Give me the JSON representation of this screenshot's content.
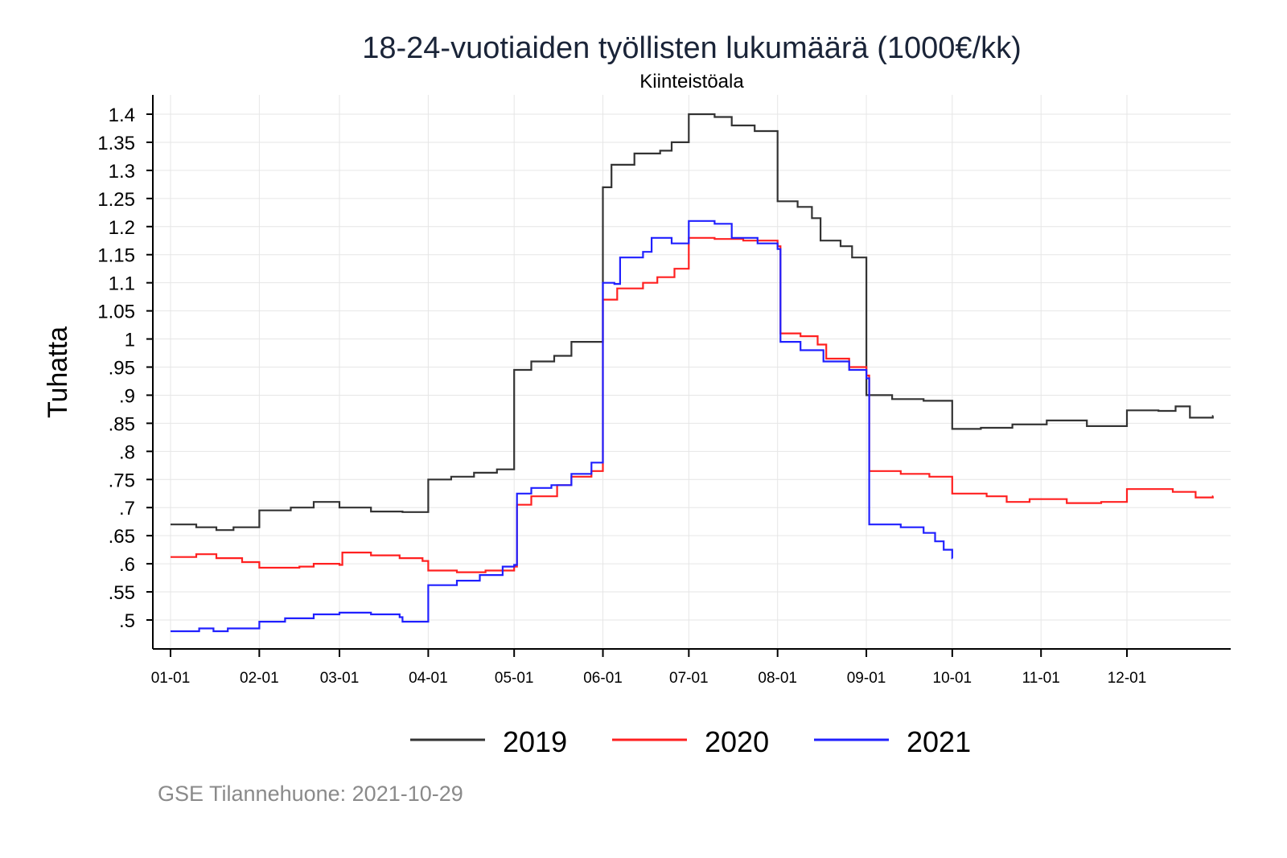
{
  "chart_data": {
    "type": "line",
    "title": "18-24-vuotiaiden työllisten lukumäärä (1000€/kk)",
    "subtitle": "Kiinteistöala",
    "ylabel": "Tuhatta",
    "xlabel": "",
    "ylim": [
      0.45,
      1.44
    ],
    "xlim_days": [
      -6,
      370
    ],
    "grid": true,
    "legend_position": "bottom",
    "y_ticks": [
      {
        "value": 1.4,
        "label": "1.4"
      },
      {
        "value": 1.35,
        "label": "1.35"
      },
      {
        "value": 1.3,
        "label": "1.3"
      },
      {
        "value": 1.25,
        "label": "1.25"
      },
      {
        "value": 1.2,
        "label": "1.2"
      },
      {
        "value": 1.15,
        "label": "1.15"
      },
      {
        "value": 1.1,
        "label": "1.1"
      },
      {
        "value": 1.05,
        "label": "1.05"
      },
      {
        "value": 1.0,
        "label": "1"
      },
      {
        "value": 0.95,
        "label": ".95"
      },
      {
        "value": 0.9,
        "label": ".9"
      },
      {
        "value": 0.85,
        "label": ".85"
      },
      {
        "value": 0.8,
        "label": ".8"
      },
      {
        "value": 0.75,
        "label": ".75"
      },
      {
        "value": 0.7,
        "label": ".7"
      },
      {
        "value": 0.65,
        "label": ".65"
      },
      {
        "value": 0.6,
        "label": ".6"
      },
      {
        "value": 0.55,
        "label": ".55"
      },
      {
        "value": 0.5,
        "label": ".5"
      }
    ],
    "x_ticks": [
      {
        "day": 0,
        "label": "01-01"
      },
      {
        "day": 31,
        "label": "02-01"
      },
      {
        "day": 59,
        "label": "03-01"
      },
      {
        "day": 90,
        "label": "04-01"
      },
      {
        "day": 120,
        "label": "05-01"
      },
      {
        "day": 151,
        "label": "06-01"
      },
      {
        "day": 181,
        "label": "07-01"
      },
      {
        "day": 212,
        "label": "08-01"
      },
      {
        "day": 243,
        "label": "09-01"
      },
      {
        "day": 273,
        "label": "10-01"
      },
      {
        "day": 304,
        "label": "11-01"
      },
      {
        "day": 334,
        "label": "12-01"
      }
    ],
    "series": [
      {
        "name": "2019",
        "color": "#333333",
        "points": [
          [
            0,
            0.67
          ],
          [
            5,
            0.67
          ],
          [
            9,
            0.665
          ],
          [
            16,
            0.66
          ],
          [
            22,
            0.665
          ],
          [
            31,
            0.695
          ],
          [
            42,
            0.7
          ],
          [
            50,
            0.71
          ],
          [
            59,
            0.7
          ],
          [
            70,
            0.693
          ],
          [
            81,
            0.692
          ],
          [
            90,
            0.75
          ],
          [
            98,
            0.755
          ],
          [
            106,
            0.762
          ],
          [
            114,
            0.768
          ],
          [
            120,
            0.945
          ],
          [
            126,
            0.96
          ],
          [
            134,
            0.97
          ],
          [
            140,
            0.995
          ],
          [
            147,
            0.995
          ],
          [
            151,
            1.27
          ],
          [
            154,
            1.31
          ],
          [
            162,
            1.33
          ],
          [
            171,
            1.335
          ],
          [
            175,
            1.35
          ],
          [
            181,
            1.4
          ],
          [
            190,
            1.395
          ],
          [
            196,
            1.38
          ],
          [
            204,
            1.37
          ],
          [
            212,
            1.245
          ],
          [
            219,
            1.235
          ],
          [
            224,
            1.215
          ],
          [
            227,
            1.175
          ],
          [
            234,
            1.165
          ],
          [
            238,
            1.145
          ],
          [
            243,
            0.9
          ],
          [
            252,
            0.893
          ],
          [
            263,
            0.89
          ],
          [
            273,
            0.84
          ],
          [
            283,
            0.842
          ],
          [
            294,
            0.848
          ],
          [
            306,
            0.855
          ],
          [
            317,
            0.855
          ],
          [
            320,
            0.845
          ],
          [
            334,
            0.873
          ],
          [
            345,
            0.872
          ],
          [
            351,
            0.88
          ],
          [
            356,
            0.86
          ],
          [
            364,
            0.863
          ]
        ]
      },
      {
        "name": "2020",
        "color": "#ff2020",
        "points": [
          [
            0,
            0.612
          ],
          [
            9,
            0.617
          ],
          [
            16,
            0.61
          ],
          [
            25,
            0.603
          ],
          [
            31,
            0.593
          ],
          [
            45,
            0.595
          ],
          [
            50,
            0.6
          ],
          [
            59,
            0.598
          ],
          [
            60,
            0.62
          ],
          [
            70,
            0.615
          ],
          [
            80,
            0.61
          ],
          [
            88,
            0.605
          ],
          [
            90,
            0.588
          ],
          [
            100,
            0.585
          ],
          [
            110,
            0.588
          ],
          [
            120,
            0.595
          ],
          [
            121,
            0.705
          ],
          [
            126,
            0.72
          ],
          [
            135,
            0.74
          ],
          [
            140,
            0.755
          ],
          [
            147,
            0.765
          ],
          [
            151,
            1.07
          ],
          [
            156,
            1.09
          ],
          [
            165,
            1.1
          ],
          [
            170,
            1.11
          ],
          [
            176,
            1.125
          ],
          [
            181,
            1.18
          ],
          [
            190,
            1.178
          ],
          [
            200,
            1.175
          ],
          [
            212,
            1.165
          ],
          [
            213,
            1.01
          ],
          [
            220,
            1.005
          ],
          [
            226,
            0.99
          ],
          [
            229,
            0.965
          ],
          [
            237,
            0.95
          ],
          [
            243,
            0.935
          ],
          [
            244,
            0.765
          ],
          [
            255,
            0.76
          ],
          [
            265,
            0.755
          ],
          [
            273,
            0.725
          ],
          [
            285,
            0.72
          ],
          [
            292,
            0.71
          ],
          [
            300,
            0.715
          ],
          [
            313,
            0.708
          ],
          [
            325,
            0.71
          ],
          [
            334,
            0.733
          ],
          [
            350,
            0.728
          ],
          [
            358,
            0.718
          ],
          [
            364,
            0.72
          ]
        ]
      },
      {
        "name": "2021",
        "color": "#2020ff",
        "points": [
          [
            0,
            0.48
          ],
          [
            10,
            0.485
          ],
          [
            15,
            0.48
          ],
          [
            20,
            0.485
          ],
          [
            31,
            0.497
          ],
          [
            40,
            0.503
          ],
          [
            50,
            0.51
          ],
          [
            59,
            0.513
          ],
          [
            70,
            0.51
          ],
          [
            80,
            0.505
          ],
          [
            81,
            0.497
          ],
          [
            89,
            0.497
          ],
          [
            90,
            0.562
          ],
          [
            100,
            0.57
          ],
          [
            108,
            0.58
          ],
          [
            116,
            0.595
          ],
          [
            120,
            0.598
          ],
          [
            121,
            0.725
          ],
          [
            126,
            0.735
          ],
          [
            133,
            0.74
          ],
          [
            140,
            0.76
          ],
          [
            147,
            0.78
          ],
          [
            151,
            1.1
          ],
          [
            155,
            1.098
          ],
          [
            157,
            1.145
          ],
          [
            165,
            1.155
          ],
          [
            168,
            1.18
          ],
          [
            175,
            1.17
          ],
          [
            181,
            1.21
          ],
          [
            190,
            1.205
          ],
          [
            196,
            1.18
          ],
          [
            205,
            1.17
          ],
          [
            212,
            1.16
          ],
          [
            213,
            0.995
          ],
          [
            220,
            0.98
          ],
          [
            228,
            0.96
          ],
          [
            237,
            0.945
          ],
          [
            243,
            0.93
          ],
          [
            244,
            0.67
          ],
          [
            255,
            0.665
          ],
          [
            263,
            0.655
          ],
          [
            267,
            0.64
          ],
          [
            270,
            0.625
          ],
          [
            273,
            0.61
          ]
        ]
      }
    ]
  },
  "footer": {
    "source": "GSE Tilannehuone: 2021-10-29"
  }
}
